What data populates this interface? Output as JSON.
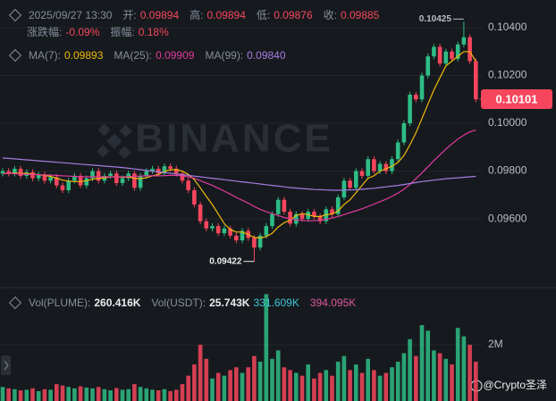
{
  "chart_data": {
    "type": "candlestick",
    "legend": {
      "time": "2025/09/27 13:30",
      "items": [
        {
          "label": "开:",
          "value": "0.09894"
        },
        {
          "label": "高:",
          "value": "0.09894"
        },
        {
          "label": "低:",
          "value": "0.09876"
        },
        {
          "label": "收:",
          "value": "0.09885"
        }
      ],
      "items2": [
        {
          "label": "涨跌幅:",
          "value": "-0.09%"
        },
        {
          "label": "振幅:",
          "value": "0.18%"
        }
      ]
    },
    "watermark": "BINANCE",
    "credit": "@Crypto圣泽",
    "up_color": "#2ebd85",
    "down_color": "#f6465d",
    "grid": true,
    "ylim": [
      0.0932,
      0.10516
    ],
    "yticks": [
      {
        "value": 0.104,
        "label": "0.10400"
      },
      {
        "value": 0.102,
        "label": "0.10200"
      },
      {
        "value": 0.1,
        "label": "0.10000"
      },
      {
        "value": 0.098,
        "label": "0.09800"
      },
      {
        "value": 0.096,
        "label": "0.09600"
      }
    ],
    "high_label": "0.10425",
    "low_label": "0.09422",
    "last_label": "0.10101",
    "open": [
      0.0979,
      0.098,
      0.0979,
      0.0981,
      0.0978,
      0.09795,
      0.0977,
      0.09785,
      0.0976,
      0.09775,
      0.0974,
      0.0972,
      0.0976,
      0.0978,
      0.0974,
      0.0977,
      0.098,
      0.0976,
      0.0978,
      0.0979,
      0.0975,
      0.0977,
      0.0979,
      0.0973,
      0.0978,
      0.098,
      0.0981,
      0.0979,
      0.0982,
      0.0981,
      0.0979,
      0.0976,
      0.0972,
      0.0966,
      0.0959,
      0.0956,
      0.0957,
      0.0954,
      0.0956,
      0.0953,
      0.0951,
      0.0955,
      0.0952,
      0.0948,
      0.0953,
      0.0957,
      0.0962,
      0.0968,
      0.0963,
      0.0958,
      0.0962,
      0.096,
      0.0963,
      0.0961,
      0.0959,
      0.0964,
      0.0962,
      0.0969,
      0.0976,
      0.0973,
      0.098,
      0.0978,
      0.0985,
      0.098,
      0.0983,
      0.098,
      0.0985,
      0.0992,
      0.1,
      0.1012,
      0.101,
      0.102,
      0.1028,
      0.1032,
      0.1025,
      0.103,
      0.1027,
      0.1033,
      0.1036,
      0.1026
    ],
    "high": [
      0.09812,
      0.09812,
      0.09822,
      0.09822,
      0.09807,
      0.09807,
      0.09797,
      0.09797,
      0.09787,
      0.09787,
      0.09752,
      0.09772,
      0.09792,
      0.09792,
      0.09782,
      0.09812,
      0.09812,
      0.09792,
      0.09802,
      0.09802,
      0.09782,
      0.09802,
      0.09802,
      0.09792,
      0.09812,
      0.09822,
      0.09822,
      0.09832,
      0.09832,
      0.09822,
      0.09802,
      0.09772,
      0.09732,
      0.09672,
      0.09602,
      0.09582,
      0.09582,
      0.09572,
      0.09572,
      0.09542,
      0.09562,
      0.09562,
      0.09532,
      0.09542,
      0.09582,
      0.09632,
      0.09692,
      0.09692,
      0.09642,
      0.09632,
      0.09632,
      0.09642,
      0.09642,
      0.09622,
      0.09652,
      0.09652,
      0.09702,
      0.09772,
      0.09772,
      0.09812,
      0.09812,
      0.09862,
      0.09862,
      0.09842,
      0.09842,
      0.09862,
      0.09932,
      0.10012,
      0.10132,
      0.10132,
      0.10212,
      0.10292,
      0.10332,
      0.10332,
      0.10312,
      0.10312,
      0.10342,
      0.10425,
      0.10372,
      0.10272
    ],
    "low": [
      0.09778,
      0.09778,
      0.09778,
      0.09768,
      0.09768,
      0.09758,
      0.09758,
      0.09748,
      0.09748,
      0.09728,
      0.09708,
      0.09708,
      0.09748,
      0.09728,
      0.09728,
      0.09758,
      0.09748,
      0.09748,
      0.09768,
      0.09738,
      0.09738,
      0.09758,
      0.09718,
      0.09718,
      0.09768,
      0.09788,
      0.09778,
      0.09778,
      0.09798,
      0.09778,
      0.09748,
      0.09708,
      0.09648,
      0.09578,
      0.09548,
      0.09548,
      0.09528,
      0.09528,
      0.09518,
      0.09498,
      0.09498,
      0.09508,
      0.09422,
      0.09468,
      0.09518,
      0.09558,
      0.09608,
      0.09618,
      0.09568,
      0.09568,
      0.09588,
      0.09588,
      0.09598,
      0.09578,
      0.09578,
      0.09608,
      0.09608,
      0.09678,
      0.09718,
      0.09718,
      0.09768,
      0.09768,
      0.09788,
      0.09788,
      0.09788,
      0.09788,
      0.09838,
      0.09908,
      0.09988,
      0.10088,
      0.10088,
      0.10188,
      0.10268,
      0.10238,
      0.10238,
      0.10258,
      0.10258,
      0.10318,
      0.10248,
      0.10089
    ],
    "close": [
      0.098,
      0.0979,
      0.0981,
      0.0978,
      0.09795,
      0.0977,
      0.09785,
      0.0976,
      0.09775,
      0.0974,
      0.0972,
      0.0976,
      0.0978,
      0.0974,
      0.0977,
      0.098,
      0.0976,
      0.0978,
      0.0979,
      0.0975,
      0.0977,
      0.0979,
      0.0973,
      0.0978,
      0.098,
      0.0981,
      0.0979,
      0.0982,
      0.0981,
      0.0979,
      0.0976,
      0.0972,
      0.0966,
      0.0959,
      0.0956,
      0.0957,
      0.0954,
      0.0956,
      0.0953,
      0.0951,
      0.0955,
      0.0952,
      0.0948,
      0.0953,
      0.0957,
      0.0962,
      0.0968,
      0.0963,
      0.0958,
      0.0962,
      0.096,
      0.0963,
      0.0961,
      0.0959,
      0.0964,
      0.0962,
      0.0969,
      0.0976,
      0.0973,
      0.098,
      0.0978,
      0.0985,
      0.098,
      0.0983,
      0.098,
      0.0985,
      0.0992,
      0.1,
      0.1012,
      0.101,
      0.102,
      0.1028,
      0.1032,
      0.1025,
      0.103,
      0.1027,
      0.1033,
      0.1036,
      0.1026,
      0.10101
    ],
    "ma": [
      {
        "name": "MA(7):",
        "color": "#f0b90b",
        "legend_value": "0.09893",
        "values": [
          0.0979,
          0.0979,
          0.09792,
          0.0979,
          0.0979,
          0.09788,
          0.09785,
          0.09782,
          0.09778,
          0.0977,
          0.09762,
          0.09758,
          0.09756,
          0.09756,
          0.0976,
          0.09766,
          0.0977,
          0.09772,
          0.09776,
          0.09776,
          0.09774,
          0.09776,
          0.0977,
          0.09768,
          0.09772,
          0.0978,
          0.09786,
          0.09798,
          0.09806,
          0.09806,
          0.098,
          0.09786,
          0.09764,
          0.0973,
          0.09694,
          0.0966,
          0.0962,
          0.0958,
          0.09555,
          0.09545,
          0.09545,
          0.09535,
          0.09522,
          0.0952,
          0.09526,
          0.0954,
          0.09566,
          0.09584,
          0.09595,
          0.09614,
          0.09622,
          0.09618,
          0.0961,
          0.0961,
          0.09617,
          0.0962,
          0.09633,
          0.0966,
          0.0968,
          0.0971,
          0.0974,
          0.0977,
          0.0978,
          0.098,
          0.0981,
          0.0982,
          0.09836,
          0.09865,
          0.0991,
          0.0996,
          0.1002,
          0.1008,
          0.1014,
          0.1019,
          0.1024,
          0.1026,
          0.1028,
          0.103,
          0.103,
          0.1026
        ]
      },
      {
        "name": "MA(25):",
        "color": "#e03a9b",
        "legend_value": "0.09909",
        "values": [
          0.0979,
          0.0979,
          0.09789,
          0.09788,
          0.09787,
          0.09786,
          0.09785,
          0.09784,
          0.09783,
          0.09782,
          0.0978,
          0.09779,
          0.09778,
          0.09777,
          0.09776,
          0.09776,
          0.09776,
          0.09776,
          0.09776,
          0.09776,
          0.09776,
          0.09777,
          0.09778,
          0.09779,
          0.0978,
          0.0978,
          0.0978,
          0.09781,
          0.09782,
          0.09782,
          0.0978,
          0.09776,
          0.0977,
          0.0976,
          0.0975,
          0.0974,
          0.09728,
          0.09716,
          0.09704,
          0.0969,
          0.09678,
          0.09666,
          0.09652,
          0.0964,
          0.0963,
          0.09622,
          0.09614,
          0.09606,
          0.096,
          0.09596,
          0.09594,
          0.09592,
          0.09592,
          0.09594,
          0.09598,
          0.09604,
          0.0961,
          0.09618,
          0.09626,
          0.09634,
          0.09642,
          0.09652,
          0.09662,
          0.09672,
          0.09682,
          0.09694,
          0.09708,
          0.09724,
          0.09744,
          0.09768,
          0.09792,
          0.09818,
          0.09844,
          0.09868,
          0.09892,
          0.09914,
          0.09934,
          0.0995,
          0.09964,
          0.09972
        ]
      },
      {
        "name": "MA(99):",
        "color": "#a77be0",
        "legend_value": "0.09840",
        "values": [
          0.09855,
          0.09853,
          0.09851,
          0.09849,
          0.09847,
          0.09845,
          0.09843,
          0.09841,
          0.09839,
          0.09837,
          0.09835,
          0.09833,
          0.09831,
          0.09829,
          0.09827,
          0.09825,
          0.09823,
          0.09821,
          0.09819,
          0.09817,
          0.09815,
          0.09812,
          0.09809,
          0.09806,
          0.09803,
          0.098,
          0.09797,
          0.09794,
          0.09791,
          0.09788,
          0.09785,
          0.09782,
          0.09779,
          0.09776,
          0.09773,
          0.0977,
          0.09767,
          0.09764,
          0.09761,
          0.09758,
          0.09755,
          0.09752,
          0.09749,
          0.09746,
          0.09743,
          0.0974,
          0.09737,
          0.09734,
          0.09731,
          0.09729,
          0.09727,
          0.09725,
          0.09723,
          0.09722,
          0.09721,
          0.0972,
          0.0972,
          0.0972,
          0.09721,
          0.09722,
          0.09724,
          0.09726,
          0.09728,
          0.09731,
          0.09734,
          0.09737,
          0.0974,
          0.09744,
          0.09748,
          0.09752,
          0.09756,
          0.09759,
          0.09762,
          0.09765,
          0.09768,
          0.0977,
          0.09772,
          0.09774,
          0.09776,
          0.09778
        ]
      }
    ],
    "volume": {
      "legend": [
        {
          "label": "Vol(PLUME):",
          "value": "260.416K"
        },
        {
          "label": "Vol(USDT):",
          "value": "25.743K"
        }
      ],
      "extra": [
        {
          "value": "331.609K",
          "color": "#3ec6d6"
        },
        {
          "value": "394.095K",
          "color": "#e0579b"
        }
      ],
      "ylim": [
        0,
        3940000
      ],
      "yticks": [
        {
          "value": 2000000,
          "label": "2M"
        }
      ],
      "values": [
        500000,
        450000,
        420000,
        380000,
        400000,
        450000,
        350000,
        420000,
        400000,
        600000,
        550000,
        500000,
        450000,
        520000,
        480000,
        450000,
        500000,
        420000,
        380000,
        460000,
        400000,
        420000,
        600000,
        500000,
        450000,
        400000,
        380000,
        420000,
        350000,
        400000,
        600000,
        900000,
        1300000,
        2000000,
        1500000,
        800000,
        1000000,
        900000,
        1100000,
        1200000,
        1000000,
        1200000,
        1600000,
        1400000,
        3800000,
        1500000,
        1800000,
        1200000,
        1100000,
        1000000,
        900000,
        1300000,
        800000,
        1000000,
        1100000,
        900000,
        1400000,
        1600000,
        1100000,
        1300000,
        1000000,
        1500000,
        1100000,
        900000,
        1000000,
        1200000,
        1400000,
        1700000,
        2200000,
        1600000,
        2700000,
        2500000,
        1800000,
        1700000,
        1500000,
        1300000,
        2600000,
        2300000,
        2000000,
        1400000
      ]
    }
  }
}
